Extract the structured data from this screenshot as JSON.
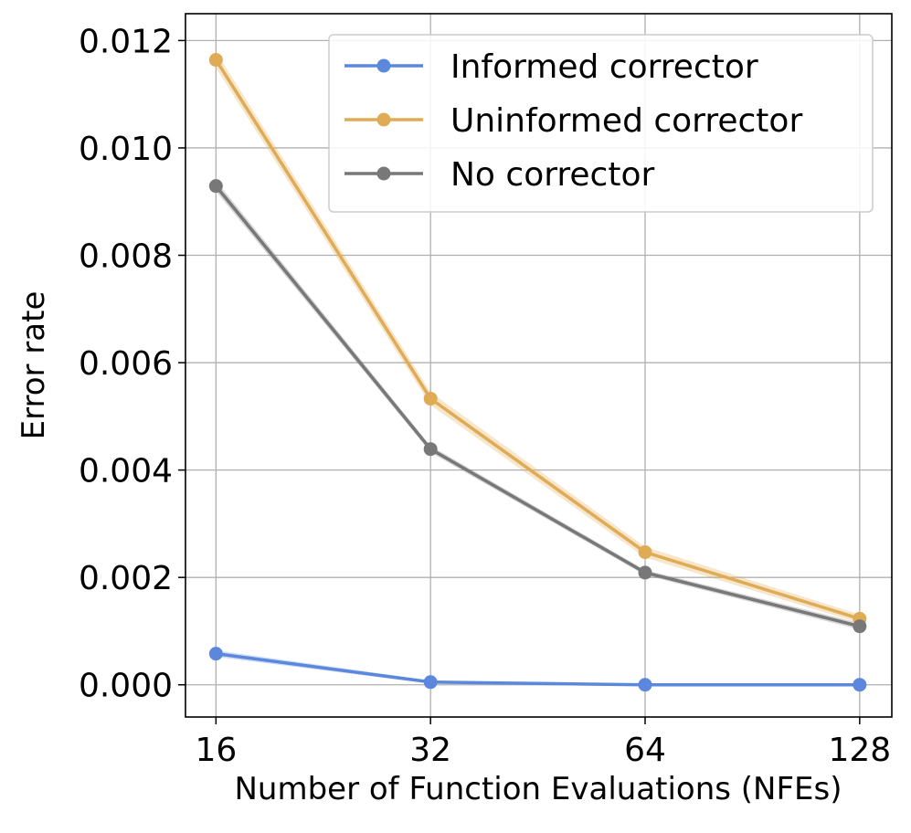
{
  "chart_data": {
    "type": "line",
    "title": "",
    "xlabel": "Number of Function Evaluations (NFEs)",
    "ylabel": "Error rate",
    "x_scale": "log2",
    "x": [
      16,
      32,
      64,
      128
    ],
    "x_tick_labels": [
      "16",
      "32",
      "64",
      "128"
    ],
    "xlim": [
      14.5,
      142
    ],
    "ylim": [
      -0.0006,
      0.0125
    ],
    "y_ticks": [
      0.0,
      0.002,
      0.004,
      0.006,
      0.008,
      0.01,
      0.012
    ],
    "y_tick_labels": [
      "0.000",
      "0.002",
      "0.004",
      "0.006",
      "0.008",
      "0.010",
      "0.012"
    ],
    "grid": true,
    "legend_position": "top-right",
    "series": [
      {
        "name": "Informed corrector",
        "color": "#5b87dd",
        "values": [
          0.00058,
          5e-05,
          0.0,
          0.0
        ],
        "band": [
          6e-05,
          3e-05,
          1e-05,
          1e-05
        ]
      },
      {
        "name": "Uninformed corrector",
        "color": "#e0ab55",
        "values": [
          0.01164,
          0.00533,
          0.00247,
          0.00123
        ],
        "band": [
          0.00015,
          0.00012,
          0.0001,
          8e-05
        ]
      },
      {
        "name": "No corrector",
        "color": "#787878",
        "values": [
          0.00929,
          0.00439,
          0.00209,
          0.00109
        ],
        "band": [
          0.0001,
          6e-05,
          5e-05,
          6e-05
        ]
      }
    ]
  }
}
